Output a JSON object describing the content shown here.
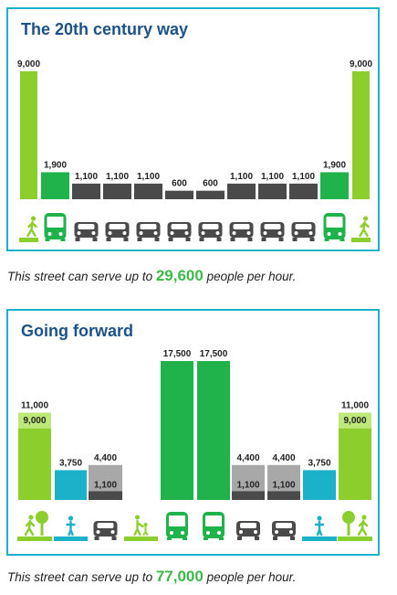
{
  "panel1": {
    "title": "The 20th century way",
    "caption_prefix": "This street can serve up to ",
    "caption_number": "29,600",
    "caption_suffix": " people per hour."
  },
  "panel2": {
    "title": "Going forward",
    "caption_prefix": "This street can serve up to ",
    "caption_number": "77,000",
    "caption_suffix": " people per hour."
  },
  "colors": {
    "pedestrian": "#8ccf2c",
    "bus": "#20b24b",
    "car": "#4a4a4a",
    "bike": "#1ab1c9",
    "car_light": "#a8a8a8",
    "border": "#1ab1c9",
    "title": "#1c5287"
  },
  "chart_data": [
    {
      "type": "bar",
      "title": "The 20th century way",
      "categories": [
        "pedestrian",
        "bus",
        "car",
        "car",
        "car",
        "car",
        "car",
        "car",
        "car",
        "car",
        "bus",
        "pedestrian"
      ],
      "icons": [
        "pedestrian-icon",
        "bus-icon",
        "car-icon",
        "car-icon",
        "car-icon",
        "car-icon",
        "car-icon",
        "car-icon",
        "car-icon",
        "car-icon",
        "bus-icon",
        "pedestrian-icon"
      ],
      "values": [
        9000,
        1900,
        1100,
        1100,
        1100,
        600,
        600,
        1100,
        1100,
        1100,
        1900,
        9000
      ],
      "labels": [
        "9,000",
        "1,900",
        "1,100",
        "1,100",
        "1,100",
        "600",
        "600",
        "1,100",
        "1,100",
        "1,100",
        "1,900",
        "9,000"
      ],
      "total": "29,600"
    },
    {
      "type": "bar",
      "title": "Going forward",
      "categories": [
        "pedestrian",
        "bike",
        "car",
        "pedestrian",
        "bus",
        "bus",
        "car",
        "car",
        "bike",
        "pedestrian"
      ],
      "icons": [
        "pedestrian-tree-icon",
        "cyclist-icon",
        "car-icon",
        "family-icon",
        "bus-icon",
        "bus-icon",
        "car-icon",
        "car-icon",
        "cyclist-icon",
        "pedestrian-tree-icon"
      ],
      "values": [
        11000,
        3750,
        4400,
        0,
        17500,
        17500,
        4400,
        4400,
        3750,
        11000
      ],
      "labels": [
        "11,000",
        "3,750",
        "4,400",
        "",
        "17,500",
        "17,500",
        "4,400",
        "4,400",
        "3,750",
        "11,000"
      ],
      "inner_values": [
        9000,
        null,
        1100,
        null,
        null,
        null,
        1100,
        1100,
        null,
        9000
      ],
      "inner_labels": [
        "9,000",
        "",
        "1,100",
        "",
        "",
        "",
        "1,100",
        "1,100",
        "",
        "9,000"
      ],
      "total": "77,000"
    }
  ]
}
